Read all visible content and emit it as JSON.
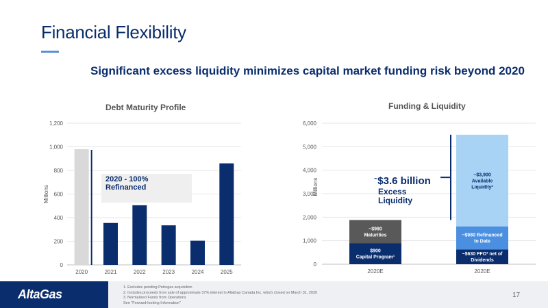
{
  "slide": {
    "title": "Financial Flexibility",
    "subtitle": "Significant excess liquidity minimizes capital market funding risk beyond 2020",
    "page_number": "17"
  },
  "colors": {
    "navy": "#0a2d6e",
    "blue": "#1f4e9c",
    "light_blue": "#a9d3f5",
    "mid_blue": "#4a8fe0",
    "dark_gray": "#595959",
    "light_gray": "#d9d9d9"
  },
  "left_callout": {
    "line1": "2020 - 100%",
    "line2": "Refinanced"
  },
  "right_callout": {
    "prefix": "~",
    "amount": "$3.6 billion",
    "line1": "Excess",
    "line2": "Liquidity"
  },
  "footer": {
    "logo": "AltaGas",
    "notes": [
      "1. Excludes pending Petrogas acquisition",
      "2. Includes proceeds from sale of approximate 37% interest in AltaGas Canada Inc. which closed on March 31, 2020",
      "3. Normalized Funds from Operations",
      "See \"Forward-looking Information\""
    ]
  },
  "chart_data": [
    {
      "type": "bar",
      "title": "Debt Maturity Profile",
      "ylabel": "Millions",
      "ylim": [
        0,
        1200
      ],
      "yticks": [
        "0",
        "200",
        "400",
        "600",
        "800",
        "1,000",
        "1,200"
      ],
      "categories": [
        "2020",
        "2021",
        "2022",
        "2023",
        "2024",
        "2025"
      ],
      "values": [
        980,
        355,
        505,
        335,
        205,
        860
      ],
      "bar_colors": [
        "#d9d9d9",
        "#0a2d6e",
        "#0a2d6e",
        "#0a2d6e",
        "#0a2d6e",
        "#0a2d6e"
      ]
    },
    {
      "type": "bar",
      "stacked": true,
      "title": "Funding & Liquidity",
      "ylabel": "Millions",
      "ylim": [
        0,
        6000
      ],
      "yticks": [
        "0",
        "1,000",
        "2,000",
        "3,000",
        "4,000",
        "5,000",
        "6,000"
      ],
      "categories": [
        "2020E",
        "2020E"
      ],
      "stacks": [
        {
          "segments": [
            {
              "value": 900,
              "color": "#0a2d6e",
              "label_lines": [
                "$900",
                "Capital Program¹"
              ],
              "text_color": "#ffffff"
            },
            {
              "value": 980,
              "color": "#595959",
              "label_lines": [
                "~$980",
                "Maturities"
              ],
              "text_color": "#ffffff"
            }
          ]
        },
        {
          "segments": [
            {
              "value": 630,
              "color": "#0a2d6e",
              "label_lines": [
                "~$630 FFO³ net of",
                "Dividends"
              ],
              "text_color": "#ffffff"
            },
            {
              "value": 980,
              "color": "#4a8fe0",
              "label_lines": [
                "~$980 Refinanced",
                "to Date"
              ],
              "text_color": "#ffffff"
            },
            {
              "value": 3900,
              "color": "#a9d3f5",
              "label_lines": [
                "~$3,900",
                "Available",
                "Liquidity²"
              ],
              "text_color": "#0a2d6e"
            }
          ]
        }
      ]
    }
  ]
}
